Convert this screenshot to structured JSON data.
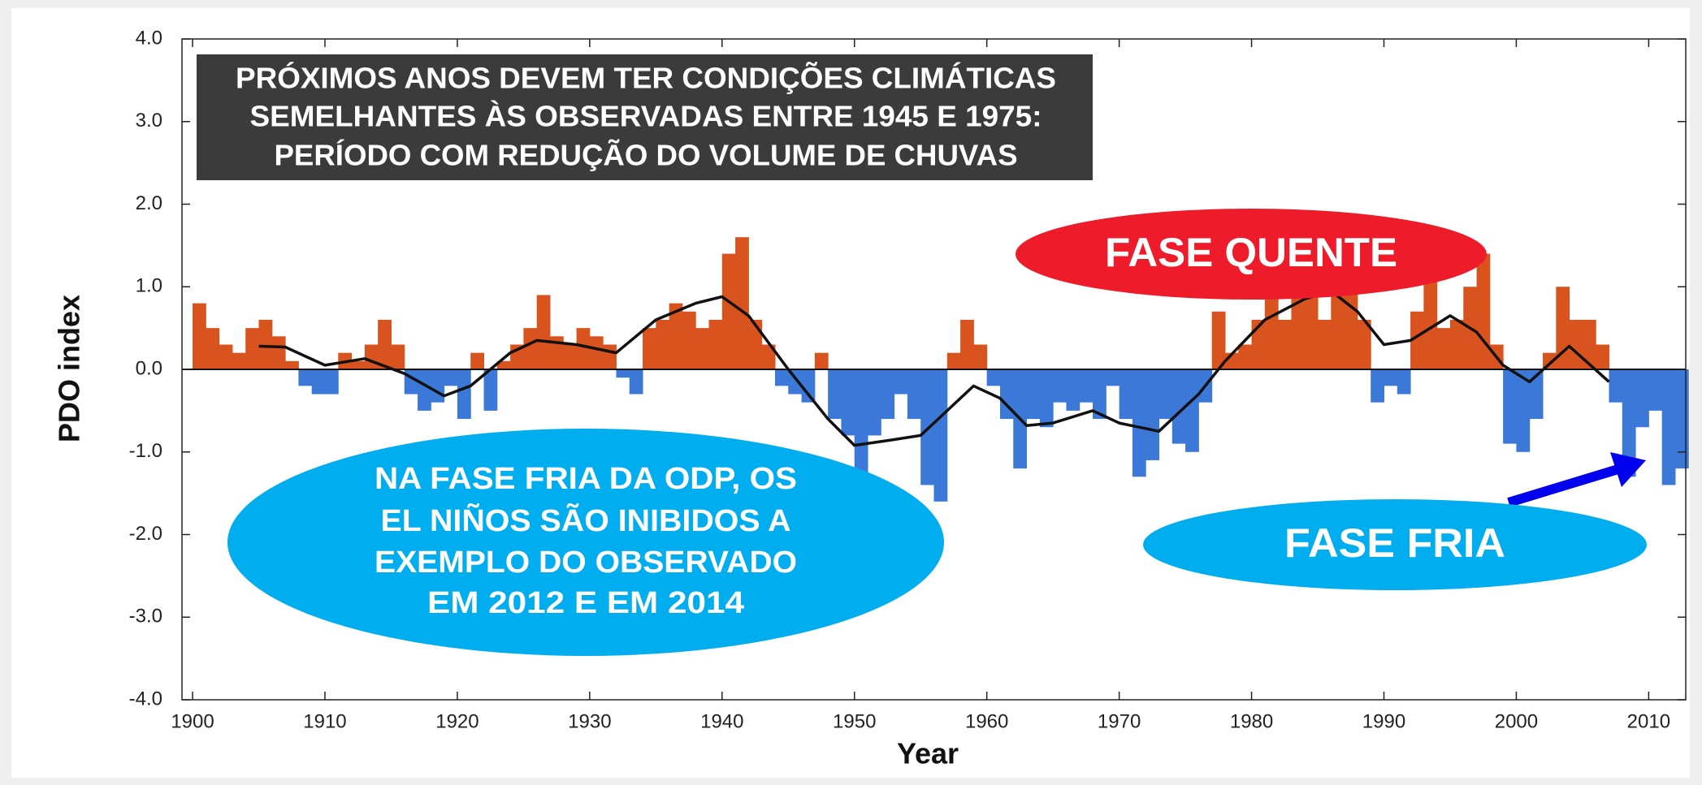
{
  "chart_data": {
    "type": "bar",
    "x_label": "Year",
    "y_label": "PDO index",
    "xlim": [
      1899.2,
      2012.8
    ],
    "ylim": [
      -4,
      4
    ],
    "xticks": [
      1900,
      1910,
      1920,
      1930,
      1940,
      1950,
      1960,
      1970,
      1980,
      1990,
      2000,
      2010
    ],
    "yticks": [
      {
        "value": -4,
        "label": "-4.0"
      },
      {
        "value": -3,
        "label": "-3.0"
      },
      {
        "value": -2,
        "label": "-2.0"
      },
      {
        "value": -1,
        "label": "-1.0"
      },
      {
        "value": 0,
        "label": "0.0"
      },
      {
        "value": 1,
        "label": "1.0"
      },
      {
        "value": 2,
        "label": "2.0"
      },
      {
        "value": 3,
        "label": "3.0"
      },
      {
        "value": 4,
        "label": "4.0"
      }
    ],
    "positive_color": "#d9531e",
    "negative_color": "#3b78d8",
    "line_color": "#111111",
    "x": [
      1900,
      1901,
      1902,
      1903,
      1904,
      1905,
      1906,
      1907,
      1908,
      1909,
      1910,
      1911,
      1912,
      1913,
      1914,
      1915,
      1916,
      1917,
      1918,
      1919,
      1920,
      1921,
      1922,
      1923,
      1924,
      1925,
      1926,
      1927,
      1928,
      1929,
      1930,
      1931,
      1932,
      1933,
      1934,
      1935,
      1936,
      1937,
      1938,
      1939,
      1940,
      1941,
      1942,
      1943,
      1944,
      1945,
      1946,
      1947,
      1948,
      1949,
      1950,
      1951,
      1952,
      1953,
      1954,
      1955,
      1956,
      1957,
      1958,
      1959,
      1960,
      1961,
      1962,
      1963,
      1964,
      1965,
      1966,
      1967,
      1968,
      1969,
      1970,
      1971,
      1972,
      1973,
      1974,
      1975,
      1976,
      1977,
      1978,
      1979,
      1980,
      1981,
      1982,
      1983,
      1984,
      1985,
      1986,
      1987,
      1988,
      1989,
      1990,
      1991,
      1992,
      1993,
      1994,
      1995,
      1996,
      1997,
      1998,
      1999,
      2000,
      2001,
      2002,
      2003,
      2004,
      2005,
      2006,
      2007,
      2008,
      2009,
      2010,
      2011,
      2012
    ],
    "values": [
      0.8,
      0.5,
      0.3,
      0.2,
      0.5,
      0.6,
      0.4,
      0.1,
      -0.2,
      -0.3,
      -0.3,
      0.2,
      0.1,
      0.3,
      0.6,
      0.3,
      -0.3,
      -0.5,
      -0.4,
      -0.2,
      -0.6,
      0.2,
      -0.5,
      0.1,
      0.3,
      0.5,
      0.9,
      0.4,
      0.3,
      0.5,
      0.4,
      0.3,
      -0.1,
      -0.3,
      0.5,
      0.6,
      0.8,
      0.7,
      0.5,
      0.6,
      1.4,
      1.6,
      0.6,
      0.3,
      -0.2,
      -0.3,
      -0.4,
      0.2,
      -0.6,
      -0.8,
      -1.3,
      -0.8,
      -0.6,
      -0.3,
      -0.6,
      -1.4,
      -1.6,
      0.2,
      0.6,
      0.3,
      -0.2,
      -0.6,
      -1.2,
      -0.6,
      -0.7,
      -0.4,
      -0.5,
      -0.4,
      -0.6,
      -0.2,
      -0.6,
      -1.3,
      -1.1,
      -0.6,
      -0.9,
      -1.0,
      -0.4,
      0.7,
      0.2,
      0.3,
      0.6,
      1.0,
      0.6,
      1.7,
      0.9,
      0.6,
      1.2,
      1.6,
      0.6,
      -0.4,
      -0.2,
      -0.3,
      0.7,
      1.2,
      0.5,
      0.6,
      1.0,
      1.4,
      0.3,
      -0.9,
      -1.0,
      -0.6,
      0.2,
      1.0,
      0.6,
      0.6,
      0.3,
      -0.4,
      -1.3,
      -0.7,
      -0.5,
      -1.4,
      -1.2
    ],
    "smooth_x": [
      1905,
      1907,
      1910,
      1913,
      1916,
      1919,
      1921,
      1924,
      1926,
      1929,
      1932,
      1935,
      1938,
      1940,
      1942,
      1945,
      1948,
      1950,
      1953,
      1955,
      1957,
      1959,
      1961,
      1963,
      1965,
      1968,
      1970,
      1973,
      1976,
      1978,
      1981,
      1984,
      1986,
      1988,
      1990,
      1992,
      1995,
      1997,
      1999,
      2001,
      2004,
      2007
    ],
    "smooth_values": [
      0.28,
      0.27,
      0.05,
      0.13,
      -0.05,
      -0.32,
      -0.2,
      0.2,
      0.35,
      0.3,
      0.2,
      0.6,
      0.8,
      0.88,
      0.65,
      0.0,
      -0.6,
      -0.92,
      -0.85,
      -0.8,
      -0.5,
      -0.2,
      -0.35,
      -0.68,
      -0.65,
      -0.5,
      -0.65,
      -0.75,
      -0.3,
      0.1,
      0.6,
      0.85,
      0.95,
      0.7,
      0.3,
      0.35,
      0.65,
      0.45,
      0.05,
      -0.15,
      0.28,
      -0.15
    ],
    "annotations": {
      "headline": [
        "PRÓXIMOS ANOS DEVEM TER CONDIÇÕES CLIMÁTICAS",
        "SEMELHANTES ÀS OBSERVADAS ENTRE 1945 E 1975:",
        "PERÍODO COM REDUÇÃO DO VOLUME DE CHUVAS"
      ],
      "warm": "FASE  QUENTE",
      "cold_note": [
        "NA FASE FRIA DA ODP, OS",
        "EL NIÑOS SÃO INIBIDOS A",
        "EXEMPLO DO OBSERVADO",
        "EM 2012 E EM 2014"
      ],
      "cold": "FASE  FRIA"
    }
  }
}
